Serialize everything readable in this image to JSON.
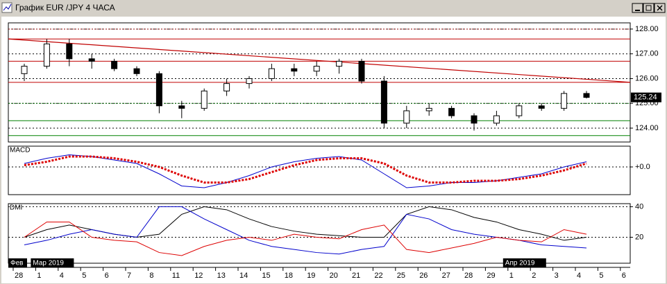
{
  "window": {
    "title": "График EUR /JPY  4 ЧАСА"
  },
  "chart_data": [
    {
      "type": "candlestick",
      "categories": [
        "28",
        "1",
        "4",
        "5",
        "6",
        "7",
        "8",
        "11",
        "12",
        "13",
        "14",
        "15",
        "18",
        "19",
        "20",
        "21",
        "22",
        "25",
        "26",
        "27",
        "28",
        "29",
        "1",
        "2",
        "3",
        "4",
        "5",
        "6"
      ],
      "months": [
        {
          "label": "Фев",
          "category": 0
        },
        {
          "label": "Мар 2019",
          "category": 1
        },
        {
          "label": "Апр 2019",
          "category": 22
        }
      ],
      "open": [
        126.2,
        126.5,
        127.4,
        126.8,
        126.7,
        126.4,
        126.2,
        124.9,
        124.8,
        125.5,
        125.8,
        126.0,
        126.4,
        126.3,
        126.5,
        126.7,
        125.9,
        124.2,
        124.7,
        124.8,
        124.5,
        124.2,
        124.5,
        124.9,
        124.8,
        125.4,
        null,
        null
      ],
      "high": [
        126.6,
        127.6,
        127.6,
        127.0,
        126.8,
        126.5,
        126.3,
        125.1,
        125.6,
        126.0,
        126.1,
        126.6,
        126.6,
        126.7,
        126.8,
        126.8,
        126.1,
        124.9,
        125.0,
        124.9,
        124.6,
        124.7,
        125.0,
        125.0,
        125.5,
        125.5,
        null,
        null
      ],
      "low": [
        125.9,
        126.4,
        126.5,
        126.4,
        126.3,
        126.1,
        124.6,
        124.4,
        124.7,
        125.3,
        125.6,
        125.9,
        126.1,
        126.1,
        126.2,
        125.8,
        124.0,
        124.0,
        124.5,
        124.4,
        123.9,
        124.1,
        124.4,
        124.7,
        124.7,
        125.2,
        null,
        null
      ],
      "close": [
        126.5,
        127.4,
        126.8,
        126.7,
        126.4,
        126.2,
        124.9,
        124.8,
        125.5,
        125.8,
        126.0,
        126.4,
        126.3,
        126.5,
        126.7,
        125.9,
        124.2,
        124.7,
        124.8,
        124.5,
        124.2,
        124.5,
        124.9,
        124.8,
        125.4,
        125.24,
        null,
        null
      ],
      "color": "#000000",
      "ylim": [
        123.44,
        128.25
      ],
      "yticks": [
        {
          "value": 124,
          "label": "124.00"
        },
        {
          "value": 125,
          "label": "125.00"
        },
        {
          "value": 126,
          "label": "126.00"
        },
        {
          "value": 127,
          "label": "127.00"
        },
        {
          "value": 128,
          "label": "128.00"
        }
      ],
      "levels": [
        {
          "value": 128.0,
          "color": "#8b0000",
          "style": "dotted"
        },
        {
          "value": 127.6,
          "color": "#c00000",
          "style": "solid"
        },
        {
          "value": 126.7,
          "color": "#c00000",
          "style": "solid"
        },
        {
          "value": 125.85,
          "color": "#c00000",
          "style": "solid"
        },
        {
          "value": 125.0,
          "color": "#007000",
          "style": "dotted"
        },
        {
          "value": 124.3,
          "color": "#008000",
          "style": "solid"
        },
        {
          "value": 123.7,
          "color": "#008000",
          "style": "solid"
        }
      ],
      "trend_line": {
        "color": "#c00000",
        "values": [
          127.6,
          125.85
        ]
      },
      "last_label": {
        "value": 125.24,
        "label": "125.24"
      }
    },
    {
      "type": "line",
      "title": "MACD",
      "series": [
        {
          "color": "#0000cc",
          "style": "solid",
          "values": [
            0.1,
            0.25,
            0.35,
            0.3,
            0.2,
            0.1,
            -0.2,
            -0.55,
            -0.6,
            -0.45,
            -0.25,
            0.0,
            0.15,
            0.25,
            0.3,
            0.2,
            -0.2,
            -0.6,
            -0.55,
            -0.45,
            -0.45,
            -0.4,
            -0.3,
            -0.2,
            0.0,
            0.15,
            null,
            null
          ]
        },
        {
          "color": "#dd0000",
          "style": "dotted",
          "values": [
            0.05,
            0.15,
            0.3,
            0.3,
            0.25,
            0.15,
            0.0,
            -0.25,
            -0.45,
            -0.45,
            -0.35,
            -0.15,
            0.05,
            0.2,
            0.25,
            0.25,
            0.1,
            -0.25,
            -0.45,
            -0.45,
            -0.4,
            -0.4,
            -0.35,
            -0.25,
            -0.1,
            0.1,
            null,
            null
          ]
        }
      ],
      "ylim": [
        -0.8,
        0.6
      ],
      "yticks": [
        {
          "value": 0,
          "label": "+0.0"
        }
      ]
    },
    {
      "type": "line",
      "title": "DMI",
      "series": [
        {
          "color": "#000000",
          "style": "solid",
          "values": [
            20,
            25,
            28,
            25,
            22,
            20,
            22,
            35,
            40,
            38,
            32,
            27,
            24,
            22,
            21,
            20,
            20,
            35,
            40,
            38,
            33,
            30,
            25,
            22,
            18,
            20,
            null,
            null
          ]
        },
        {
          "color": "#0000cc",
          "style": "solid",
          "values": [
            15,
            18,
            22,
            25,
            22,
            20,
            40,
            40,
            32,
            25,
            18,
            14,
            12,
            10,
            9,
            12,
            14,
            35,
            32,
            25,
            22,
            20,
            18,
            15,
            14,
            13,
            null,
            null
          ]
        },
        {
          "color": "#dd0000",
          "style": "solid",
          "values": [
            20,
            30,
            30,
            20,
            18,
            17,
            10,
            8,
            14,
            18,
            20,
            18,
            22,
            20,
            19,
            25,
            28,
            12,
            10,
            13,
            16,
            20,
            18,
            17,
            25,
            22,
            null,
            null
          ]
        }
      ],
      "ylim": [
        3,
        42
      ],
      "yticks": [
        20,
        40
      ]
    }
  ]
}
